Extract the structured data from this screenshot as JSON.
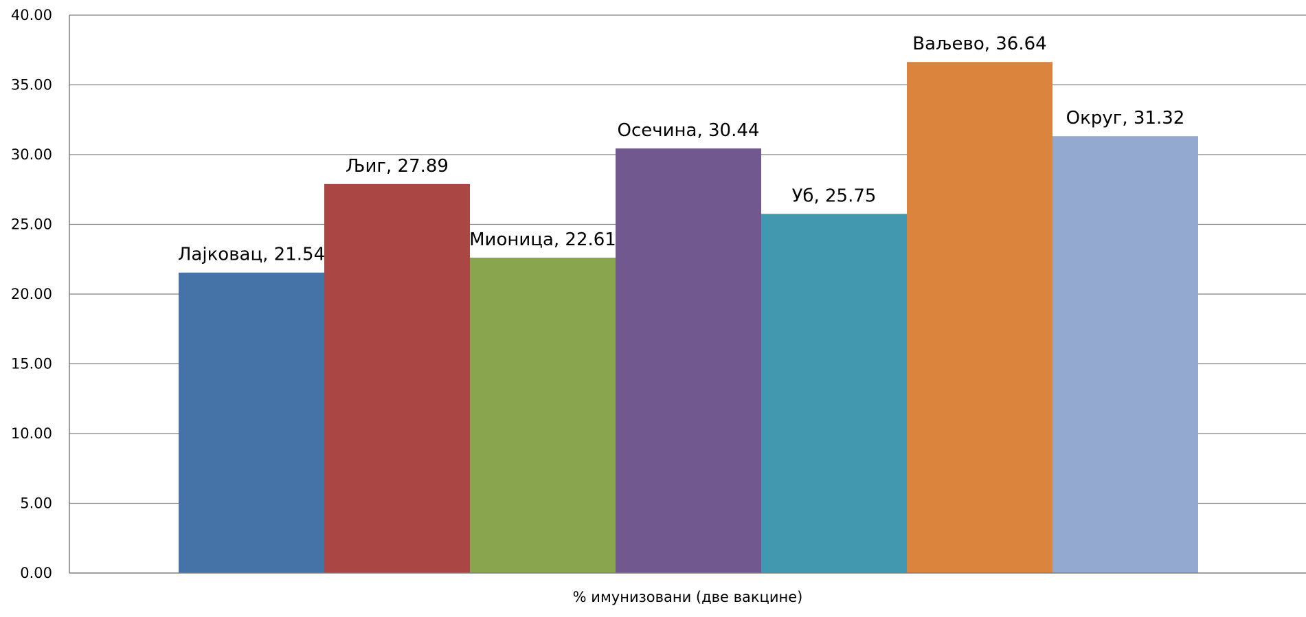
{
  "chart_data": {
    "type": "bar",
    "categories": [
      "% имунизовани (две вакцине)"
    ],
    "series": [
      {
        "name": "Лајковац",
        "values": [
          21.54
        ],
        "color": "#4572A7"
      },
      {
        "name": "Љиг",
        "values": [
          27.89
        ],
        "color": "#AA4643"
      },
      {
        "name": "Мионица",
        "values": [
          22.61
        ],
        "color": "#89A54E"
      },
      {
        "name": "Осечина",
        "values": [
          30.44
        ],
        "color": "#71588F"
      },
      {
        "name": "Уб",
        "values": [
          25.75
        ],
        "color": "#4198AF"
      },
      {
        "name": "Ваљево",
        "values": [
          36.64
        ],
        "color": "#DB843D"
      },
      {
        "name": "Округ",
        "values": [
          31.32
        ],
        "color": "#93A9CF"
      }
    ],
    "data_labels": [
      "Лајковац, 21.54",
      "Љиг, 27.89",
      "Мионица, 22.61",
      "Осечина, 30.44",
      "Уб, 25.75",
      "Ваљево, 36.64",
      "Округ, 31.32"
    ],
    "ylim": [
      0,
      40
    ],
    "yticks": [
      "0.00",
      "5.00",
      "10.00",
      "15.00",
      "20.00",
      "25.00",
      "30.00",
      "35.00",
      "40.00"
    ],
    "xlabel": "% имунизовани (две вакцине)",
    "grid": true,
    "legend": "none"
  }
}
